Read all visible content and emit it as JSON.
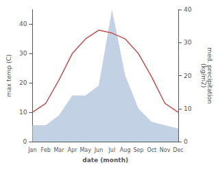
{
  "chart_data": {
    "type": "line",
    "xlabel": "date (month)",
    "ylabel": "max temp (C)",
    "y2label": "med. precipitation\n(kg/m2)",
    "categories": [
      "Jan",
      "Feb",
      "Mar",
      "Apr",
      "May",
      "Jun",
      "Jul",
      "Aug",
      "Sep",
      "Oct",
      "Nov",
      "Dec"
    ],
    "series": [
      {
        "type": "area",
        "axis": "y2",
        "color": "#b8c9e0",
        "values": [
          5,
          5,
          8,
          14,
          14,
          17,
          40,
          20,
          10,
          6,
          5,
          4
        ]
      },
      {
        "type": "line",
        "axis": "y",
        "color": "#c0504d",
        "values": [
          10,
          13,
          21,
          30,
          35,
          38,
          37,
          35,
          30,
          22,
          13,
          10
        ]
      }
    ],
    "ylim": [
      0,
      45
    ],
    "yticks": [
      0,
      10,
      20,
      30,
      40
    ],
    "y2lim": [
      0,
      40
    ],
    "y2ticks": [
      0,
      10,
      20,
      30,
      40
    ],
    "grid": false
  }
}
